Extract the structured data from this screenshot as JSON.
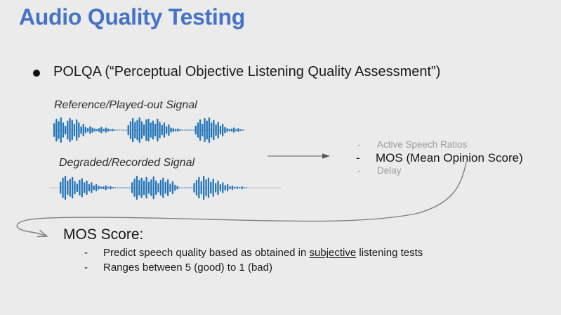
{
  "slide": {
    "title": "Audio Quality Testing",
    "title_color": "#4673c6",
    "bullet": "POLQA (“Perceptual Objective Listening Quality Assessment”)",
    "waveform_color": "#2274b8",
    "signals": [
      {
        "label": "Reference/Played-out Signal",
        "amplitudes": [
          0.55,
          0.9,
          0.7,
          1.0,
          0.6,
          0.35,
          0.75,
          0.95,
          0.8,
          0.5,
          0.85,
          0.6,
          0.3,
          0.5,
          0.25,
          0.15,
          0.3,
          0.2,
          0.12,
          0.08,
          0.15,
          0.25,
          0.1,
          0.2,
          0.12,
          0.06,
          0.1,
          0.05,
          0.03,
          0.02,
          0.03,
          0.02,
          0.03,
          0.4,
          0.7,
          0.95,
          0.65,
          0.8,
          1.0,
          0.7,
          0.45,
          0.85,
          0.9,
          0.6,
          0.75,
          0.5,
          0.9,
          0.65,
          0.4,
          0.6,
          0.3,
          0.45,
          0.2,
          0.15,
          0.1,
          0.12,
          0.06,
          0.03,
          0.02,
          0.03,
          0.02,
          0.03,
          0.02,
          0.35,
          0.6,
          0.85,
          0.5,
          0.95,
          0.75,
          1.0,
          0.6,
          0.8,
          0.45,
          0.65,
          0.35,
          0.5,
          0.25,
          0.15,
          0.1,
          0.12,
          0.2,
          0.08,
          0.15,
          0.06,
          0.04
        ]
      },
      {
        "label": "Degraded/Recorded Signal",
        "amplitudes": [
          0.5,
          0.85,
          1.0,
          0.6,
          0.75,
          0.9,
          0.55,
          0.35,
          0.65,
          0.8,
          0.45,
          0.6,
          0.3,
          0.45,
          0.2,
          0.3,
          0.15,
          0.1,
          0.12,
          0.2,
          0.08,
          0.14,
          0.06,
          0.04,
          0.03,
          0.02,
          0.03,
          0.02,
          0.03,
          0.02,
          0.45,
          0.75,
          1.0,
          0.65,
          0.85,
          0.6,
          0.9,
          0.5,
          0.7,
          0.95,
          0.6,
          0.4,
          0.65,
          0.85,
          0.5,
          0.7,
          0.35,
          0.55,
          0.25,
          0.15,
          0.03,
          0.02,
          0.03,
          0.02,
          0.03,
          0.02,
          0.4,
          0.65,
          0.9,
          0.55,
          1.0,
          0.7,
          0.85,
          0.5,
          0.75,
          0.4,
          0.6,
          0.3,
          0.45,
          0.22,
          0.3,
          0.12,
          0.18,
          0.08,
          0.1,
          0.06,
          0.12,
          0.05,
          0.03
        ]
      }
    ],
    "outputs": [
      {
        "dash": "-",
        "label": "Active Speech Ratios"
      },
      {
        "dash": "-",
        "label": "MOS (Mean Opinion Score)"
      },
      {
        "dash": "-",
        "label": "Delay"
      }
    ],
    "mos": {
      "heading": "MOS Score:",
      "points": [
        {
          "dash": "-",
          "pre": "Predict speech quality based as obtained in ",
          "underline": "subjective",
          "post": " listening tests"
        },
        {
          "dash": "-",
          "pre": "Ranges between 5 (good) to 1 (bad)",
          "underline": "",
          "post": ""
        }
      ]
    }
  }
}
